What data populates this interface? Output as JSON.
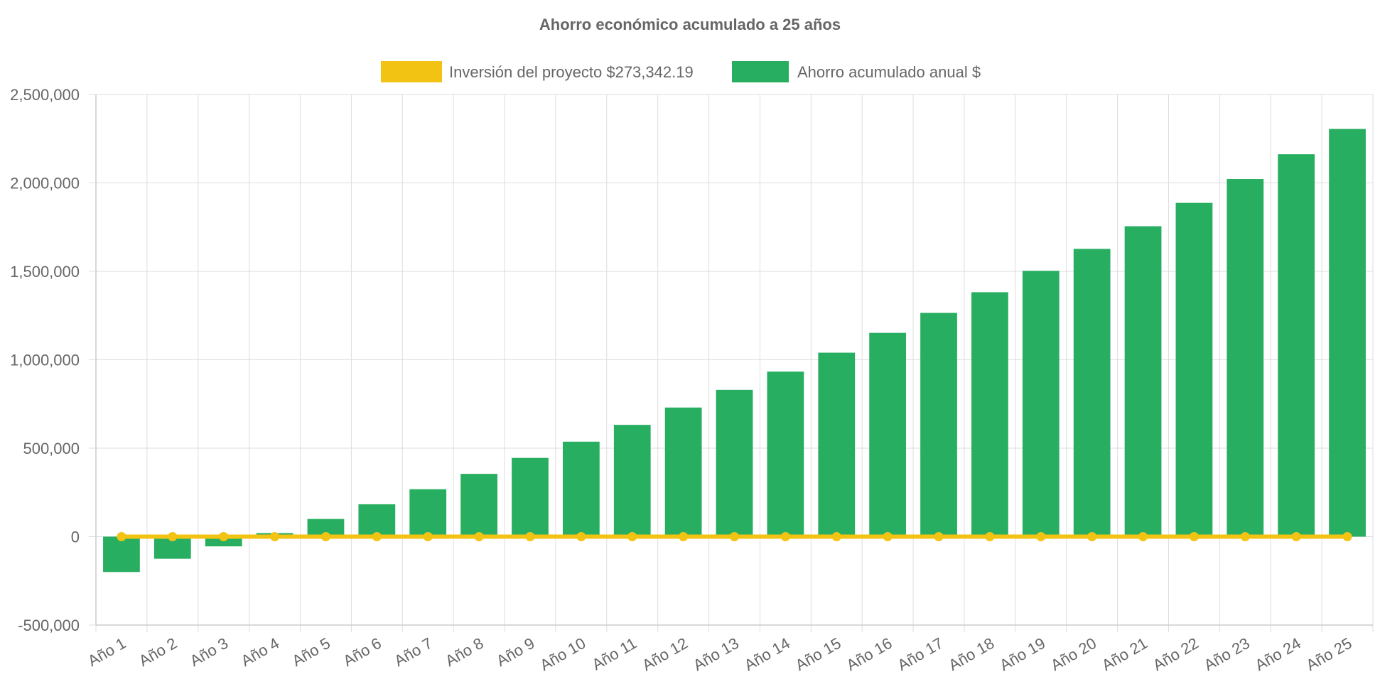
{
  "chart_data": {
    "type": "bar",
    "title": "Ahorro económico acumulado a 25 años",
    "xlabel": "",
    "ylabel": "",
    "ylim": [
      -500000,
      2500000
    ],
    "yticks": [
      2500000,
      2000000,
      1500000,
      1000000,
      500000,
      0,
      -500000
    ],
    "ytick_labels": [
      "2,500,000",
      "2,000,000",
      "1,500,000",
      "1,000,000",
      "500,000",
      "0",
      "-500,000"
    ],
    "categories": [
      "Año 1",
      "Año 2",
      "Año 3",
      "Año 4",
      "Año 5",
      "Año 6",
      "Año 7",
      "Año 8",
      "Año 9",
      "Año 10",
      "Año 11",
      "Año 12",
      "Año 13",
      "Año 14",
      "Año 15",
      "Año 16",
      "Año 17",
      "Año 18",
      "Año 19",
      "Año 20",
      "Año 21",
      "Año 22",
      "Año 23",
      "Año 24",
      "Año 25"
    ],
    "grid": true,
    "legend_position": "top",
    "series": [
      {
        "name": "Inversión del proyecto $273,342.19",
        "type": "line",
        "color": "#f2c313",
        "values": [
          0,
          0,
          0,
          0,
          0,
          0,
          0,
          0,
          0,
          0,
          0,
          0,
          0,
          0,
          0,
          0,
          0,
          0,
          0,
          0,
          0,
          0,
          0,
          0,
          0
        ]
      },
      {
        "name": "Ahorro acumulado anual $",
        "type": "bar",
        "color": "#27ae60",
        "values": [
          -200000,
          -125000,
          -55000,
          20000,
          100000,
          183000,
          268000,
          355000,
          445000,
          537000,
          632000,
          730000,
          830000,
          933000,
          1040000,
          1152000,
          1265000,
          1382000,
          1503000,
          1627000,
          1755000,
          1887000,
          2022000,
          2162000,
          2305000
        ]
      }
    ]
  }
}
